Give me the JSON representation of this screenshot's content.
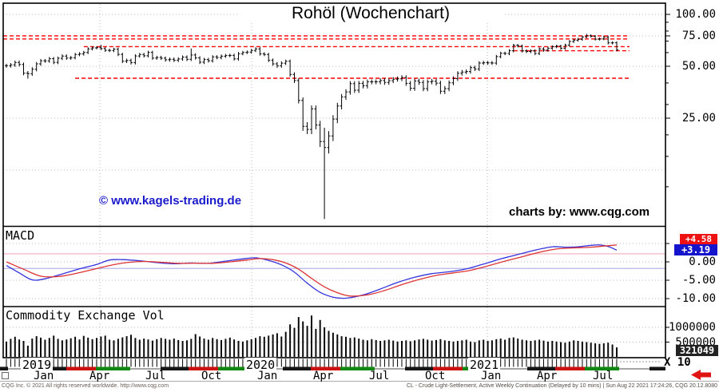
{
  "title": "Rohöl (Wochenchart)",
  "watermarks": {
    "left": "© www.kagels-trading.de",
    "left_color": "#1a1acc",
    "right": "charts by: www.cqg.com"
  },
  "panels": {
    "macd_label": "MACD",
    "volume_label": "Commodity Exchange Vol"
  },
  "axes": {
    "price_ticks": [
      {
        "value": 100,
        "label": "100.00"
      },
      {
        "value": 75,
        "label": "75.00"
      },
      {
        "value": 50,
        "label": "50.00"
      },
      {
        "value": 25,
        "label": "25.00"
      }
    ],
    "price_minor_ticks": [
      90,
      80,
      70,
      60,
      40,
      30,
      20,
      15,
      10
    ],
    "macd_ticks": [
      {
        "value": 0,
        "label": "0.00"
      },
      {
        "value": -5,
        "label": "-5.00"
      },
      {
        "value": -10,
        "label": "-10.00"
      }
    ],
    "volume_ticks": [
      {
        "value": 1000,
        "label": "1000000"
      },
      {
        "value": 500,
        "label": "500000"
      }
    ],
    "volume_multiplier": "X 10"
  },
  "badges": {
    "macd_signal": {
      "label": "+4.58",
      "bg": "#ee1111"
    },
    "macd_value": {
      "label": "+3.19",
      "bg": "#1414cc"
    },
    "volume_value": {
      "label": "321049",
      "bg": "#222222"
    }
  },
  "timeline": {
    "years": [
      {
        "label": "2019",
        "week": 6
      },
      {
        "label": "2020",
        "week": 58
      },
      {
        "label": "2021",
        "week": 110
      }
    ],
    "months": [
      {
        "label": "Jan",
        "week": 6
      },
      {
        "label": "Apr",
        "week": 19
      },
      {
        "label": "Jul",
        "week": 32
      },
      {
        "label": "Oct",
        "week": 45
      },
      {
        "label": "Jan",
        "week": 58
      },
      {
        "label": "Apr",
        "week": 71
      },
      {
        "label": "Jul",
        "week": 84
      },
      {
        "label": "Oct",
        "week": 97
      },
      {
        "label": "Jan",
        "week": 110
      },
      {
        "label": "Apr",
        "week": 123
      },
      {
        "label": "Jul",
        "week": 136
      }
    ],
    "scrollbar_pattern": {
      "colors": [
        "#9a9a9a",
        "#151515",
        "#cc1111",
        "#118811"
      ],
      "widths": [
        38,
        35,
        37,
        43
      ]
    }
  },
  "statusbar": {
    "left": "CQG Inc. © 2021 All rights reserved worldwide. http://www.cqg.com",
    "right": "CL - Crude Light-Settlement, Active Weekly Continuation (Delayed by 10 mins) | Sun Aug 22 2021 17:24:26, CQG 20.12.8080"
  },
  "chart_data": [
    {
      "type": "bar",
      "subtype": "ohlc-weekly",
      "title": "Rohöl (Wochenchart)",
      "x_start": "2018-11",
      "x_end": "2021-08",
      "yscale": "log",
      "ylim": [
        6.5,
        110
      ],
      "y_ticks": [
        100,
        75,
        50,
        25
      ],
      "grid_minor_price": 12.5,
      "wick": 1.3,
      "closes": [
        50.4,
        50.9,
        52.6,
        51.2,
        45.6,
        45.3,
        48.0,
        51.6,
        53.8,
        53.7,
        55.3,
        52.7,
        55.6,
        57.3,
        55.8,
        56.1,
        58.5,
        59.0,
        60.1,
        63.1,
        63.9,
        64.0,
        63.3,
        61.9,
        61.7,
        62.8,
        58.6,
        53.5,
        54.0,
        52.5,
        57.4,
        58.5,
        57.5,
        60.2,
        55.8,
        56.2,
        55.7,
        54.5,
        54.9,
        54.2,
        55.1,
        56.5,
        54.9,
        58.1,
        55.9,
        52.8,
        54.7,
        53.8,
        56.7,
        56.2,
        57.2,
        57.7,
        57.8,
        55.2,
        59.2,
        60.1,
        60.4,
        61.7,
        63.1,
        59.0,
        58.5,
        54.2,
        51.6,
        50.3,
        52.1,
        53.4,
        44.8,
        41.3,
        31.7,
        22.4,
        21.5,
        28.3,
        22.8,
        18.3,
        16.9,
        19.7,
        24.7,
        29.4,
        33.2,
        35.5,
        39.6,
        36.3,
        39.8,
        38.5,
        40.6,
        40.6,
        40.6,
        41.3,
        40.3,
        41.2,
        42.0,
        42.3,
        43.0,
        39.8,
        37.3,
        41.1,
        40.3,
        37.1,
        40.6,
        40.9,
        39.9,
        35.8,
        37.1,
        40.1,
        42.4,
        45.5,
        46.3,
        46.6,
        49.1,
        48.2,
        52.2,
        52.4,
        52.3,
        52.2,
        56.9,
        59.5,
        59.3,
        61.5,
        66.1,
        65.6,
        61.4,
        60.9,
        61.4,
        59.3,
        63.1,
        62.1,
        63.6,
        64.9,
        65.4,
        63.6,
        66.3,
        69.6,
        70.9,
        71.6,
        74.0,
        75.2,
        74.6,
        71.8,
        72.1,
        73.9,
        68.3,
        68.4,
        62.3
      ],
      "overrides": [
        {
          "i": 5,
          "l": 42.4
        },
        {
          "i": 22,
          "h": 66.6
        },
        {
          "i": 43,
          "h": 63.4
        },
        {
          "i": 74,
          "h": 22.0,
          "l": 6.5
        },
        {
          "i": 135,
          "h": 77.0
        }
      ],
      "levels": [
        {
          "price": 75.0,
          "from_week": 0
        },
        {
          "price": 72.0,
          "from_week": 0
        },
        {
          "price": 65.0,
          "from_week": 18
        },
        {
          "price": 61.5,
          "from_week": 118
        },
        {
          "price": 42.6,
          "from_week": 16
        }
      ],
      "level_style": {
        "color": "#ff0000",
        "dash": true
      }
    },
    {
      "type": "line",
      "title": "MACD",
      "ylim": [
        -12.5,
        9.5
      ],
      "y_ticks": [
        5,
        0,
        -5,
        -10
      ],
      "last_values": {
        "macd": 3.19,
        "signal": 4.58
      },
      "ref_lines": [
        {
          "value": 2.2,
          "color": "#f5b6c0"
        },
        {
          "value": -1.8,
          "color": "#b6b6e8"
        }
      ],
      "series": [
        {
          "name": "MACD",
          "color": "#3333dd",
          "points": [
            [
              0,
              -1.0
            ],
            [
              3,
              -3.0
            ],
            [
              6,
              -4.9
            ],
            [
              9,
              -4.6
            ],
            [
              13,
              -3.3
            ],
            [
              17,
              -1.9
            ],
            [
              21,
              -0.7
            ],
            [
              24,
              0.5
            ],
            [
              27,
              0.6
            ],
            [
              31,
              0.3
            ],
            [
              35,
              -0.2
            ],
            [
              39,
              -0.5
            ],
            [
              43,
              -0.3
            ],
            [
              47,
              -0.4
            ],
            [
              51,
              0.2
            ],
            [
              55,
              0.8
            ],
            [
              58,
              1.1
            ],
            [
              61,
              0.4
            ],
            [
              64,
              -0.8
            ],
            [
              67,
              -2.8
            ],
            [
              70,
              -5.8
            ],
            [
              73,
              -8.3
            ],
            [
              76,
              -9.6
            ],
            [
              79,
              -9.9
            ],
            [
              83,
              -9.0
            ],
            [
              87,
              -7.4
            ],
            [
              91,
              -5.6
            ],
            [
              95,
              -4.2
            ],
            [
              99,
              -3.2
            ],
            [
              103,
              -2.7
            ],
            [
              107,
              -1.9
            ],
            [
              111,
              -0.6
            ],
            [
              115,
              0.8
            ],
            [
              119,
              2.0
            ],
            [
              123,
              3.2
            ],
            [
              127,
              4.1
            ],
            [
              130,
              4.0
            ],
            [
              133,
              4.1
            ],
            [
              136,
              4.5
            ],
            [
              138,
              4.6
            ],
            [
              140,
              4.2
            ],
            [
              142,
              3.19
            ]
          ]
        },
        {
          "name": "Signal",
          "color": "#dd3333",
          "points": [
            [
              0,
              0.0
            ],
            [
              4,
              -2.0
            ],
            [
              8,
              -3.9
            ],
            [
              12,
              -4.0
            ],
            [
              16,
              -3.2
            ],
            [
              20,
              -2.1
            ],
            [
              24,
              -1.0
            ],
            [
              28,
              -0.2
            ],
            [
              32,
              0.1
            ],
            [
              36,
              -0.1
            ],
            [
              40,
              -0.4
            ],
            [
              44,
              -0.35
            ],
            [
              48,
              -0.4
            ],
            [
              52,
              0.0
            ],
            [
              56,
              0.5
            ],
            [
              59,
              0.9
            ],
            [
              62,
              0.6
            ],
            [
              65,
              -0.3
            ],
            [
              68,
              -2.0
            ],
            [
              71,
              -4.5
            ],
            [
              74,
              -6.8
            ],
            [
              77,
              -8.4
            ],
            [
              80,
              -9.3
            ],
            [
              84,
              -9.0
            ],
            [
              88,
              -7.8
            ],
            [
              92,
              -6.2
            ],
            [
              96,
              -4.8
            ],
            [
              100,
              -3.7
            ],
            [
              104,
              -3.0
            ],
            [
              108,
              -2.3
            ],
            [
              112,
              -1.1
            ],
            [
              116,
              0.2
            ],
            [
              120,
              1.4
            ],
            [
              124,
              2.6
            ],
            [
              128,
              3.5
            ],
            [
              132,
              3.8
            ],
            [
              136,
              4.0
            ],
            [
              139,
              4.3
            ],
            [
              142,
              4.58
            ]
          ]
        }
      ]
    },
    {
      "type": "bar",
      "title": "Commodity Exchange Vol",
      "unit": 1000,
      "ylim": [
        0,
        1500
      ],
      "y_ticks": [
        1000,
        500
      ],
      "last_value": 321049,
      "values": [
        520,
        610,
        680,
        590,
        540,
        380,
        620,
        700,
        650,
        580,
        640,
        720,
        610,
        560,
        590,
        630,
        680,
        590,
        710,
        650,
        600,
        640,
        690,
        720,
        580,
        560,
        610,
        660,
        700,
        750,
        640,
        580,
        620,
        590,
        550,
        600,
        640,
        610,
        580,
        620,
        570,
        540,
        560,
        610,
        770,
        690,
        620,
        580,
        640,
        600,
        570,
        610,
        650,
        590,
        540,
        520,
        560,
        600,
        640,
        700,
        680,
        720,
        760,
        800,
        690,
        850,
        1100,
        980,
        1350,
        1200,
        1050,
        1400,
        950,
        1250,
        1000,
        880,
        820,
        760,
        700,
        680,
        640,
        660,
        620,
        580,
        560,
        600,
        570,
        540,
        560,
        580,
        550,
        520,
        540,
        560,
        530,
        560,
        590,
        610,
        580,
        550,
        570,
        600,
        560,
        540,
        520,
        540,
        560,
        580,
        520,
        500,
        560,
        580,
        540,
        560,
        600,
        620,
        580,
        640,
        660,
        620,
        580,
        560,
        540,
        560,
        580,
        550,
        520,
        540,
        520,
        500,
        480,
        520,
        560,
        540,
        520,
        500,
        480,
        460,
        440,
        460,
        480,
        420,
        321
      ]
    }
  ]
}
